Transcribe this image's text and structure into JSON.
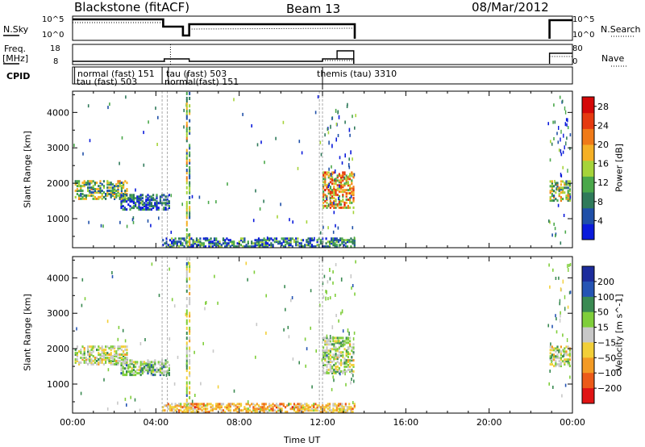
{
  "header": {
    "radar": "Blackstone (fitACF)",
    "beam": "Beam 13",
    "date": "08/Mar/2012"
  },
  "top_panels": {
    "nsky_label": "N.Sky",
    "nsearch_label": "N.Search",
    "nsky_ticks": [
      "10^5",
      "10^0"
    ],
    "nsearch_ticks": [
      "10^5",
      "10^0"
    ],
    "freq_label": "Freq.",
    "freq_unit": "[MHz]",
    "freq_ticks": [
      "18",
      "8"
    ],
    "nave_label": "Nave",
    "nave_ticks": [
      "80",
      "0"
    ],
    "cpid_label": "CPID",
    "cpid_entries": [
      {
        "text": "normal (fast) 151",
        "row": 0
      },
      {
        "text": "tau (fast) 503",
        "row": 1
      },
      {
        "text": "tau (fast) 503",
        "row": 0
      },
      {
        "text": "normal(fast) 151",
        "row": 1
      },
      {
        "text": "themis (tau) 3310",
        "row": 0
      }
    ]
  },
  "chart_data": [
    {
      "type": "heatmap",
      "title": "",
      "xlabel": "",
      "ylabel": "Slant Range [km]",
      "x_ticks": [
        "00:00",
        "04:00",
        "08:00",
        "12:00",
        "16:00",
        "20:00",
        "00:00"
      ],
      "xlim_hours": [
        0,
        24
      ],
      "ylim": [
        180,
        4600
      ],
      "y_ticks": [
        1000,
        2000,
        3000,
        4000
      ],
      "colorbar": {
        "label": "Power [dB]",
        "ticks": [
          4,
          8,
          12,
          16,
          20,
          24,
          28
        ],
        "range": [
          0,
          30
        ],
        "colors": [
          "#0a1adb",
          "#1f4fa8",
          "#2f7a5a",
          "#4aa84a",
          "#a6d43a",
          "#f5b026",
          "#f07a18",
          "#e53a10",
          "#d40808"
        ]
      },
      "regions": [
        {
          "name": "echo-band-evening",
          "start_h": 0.1,
          "end_h": 2.6,
          "range_lo": 1550,
          "range_hi": 2050,
          "level": 0.42
        },
        {
          "name": "echo-band-mid",
          "start_h": 2.3,
          "end_h": 4.6,
          "range_lo": 1250,
          "range_hi": 1700,
          "level": 0.18
        },
        {
          "name": "ground-scatter-near",
          "start_h": 4.3,
          "end_h": 13.5,
          "range_lo": 200,
          "range_hi": 450,
          "level": 0.25
        },
        {
          "name": "echo-midnight-burst",
          "start_h": 12.0,
          "end_h": 13.5,
          "range_lo": 1300,
          "range_hi": 2300,
          "level": 0.62
        },
        {
          "name": "echo-late",
          "start_h": 22.9,
          "end_h": 23.9,
          "range_lo": 1500,
          "range_hi": 2050,
          "level": 0.45
        }
      ]
    },
    {
      "type": "heatmap",
      "title": "",
      "xlabel": "Time UT",
      "ylabel": "Slant Range [km]",
      "x_ticks": [
        "00:00",
        "04:00",
        "08:00",
        "12:00",
        "16:00",
        "20:00",
        "00:00"
      ],
      "xlim_hours": [
        0,
        24
      ],
      "ylim": [
        180,
        4600
      ],
      "y_ticks": [
        1000,
        2000,
        3000,
        4000
      ],
      "colorbar": {
        "label": "Velocity [m s^-1]",
        "ticks": [
          "200",
          "100",
          "50",
          "15",
          "−15",
          "−50",
          "−100",
          "−200"
        ],
        "range": [
          -250,
          250
        ],
        "colors": [
          "#1c2c9c",
          "#2554b4",
          "#3a8a52",
          "#7fce3a",
          "#c8c8c8",
          "#f2cf38",
          "#f39a24",
          "#ec5a18",
          "#e01414"
        ]
      },
      "regions": [
        {
          "name": "velocity-band-evening",
          "start_h": 0.1,
          "end_h": 2.6,
          "range_lo": 1550,
          "range_hi": 2050,
          "level": 0.0
        },
        {
          "name": "velocity-band-mid",
          "start_h": 2.3,
          "end_h": 4.6,
          "range_lo": 1250,
          "range_hi": 1700,
          "level": 0.2
        },
        {
          "name": "velocity-ground-scatter",
          "start_h": 4.3,
          "end_h": 13.5,
          "range_lo": 200,
          "range_hi": 450,
          "level": -0.3
        },
        {
          "name": "velocity-midnight-burst",
          "start_h": 12.0,
          "end_h": 13.5,
          "range_lo": 1300,
          "range_hi": 2300,
          "level": 0.1
        },
        {
          "name": "velocity-late",
          "start_h": 22.9,
          "end_h": 23.9,
          "range_lo": 1500,
          "range_hi": 2050,
          "level": 0.0
        }
      ]
    }
  ]
}
